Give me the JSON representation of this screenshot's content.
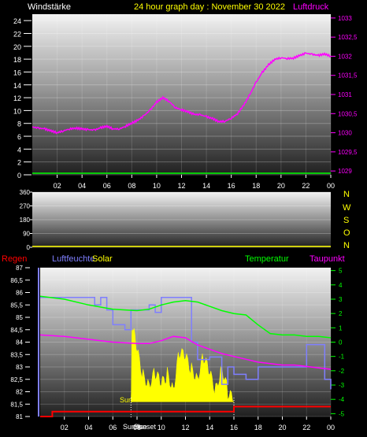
{
  "header": {
    "left_label": "Windstärke",
    "title": "24 hour graph day : November 30 2022",
    "right_label": "Luftdruck"
  },
  "colors": {
    "wind": "#00ff00",
    "pressure": "#ff00ff",
    "direction": "#ffff00",
    "rain": "#ff0000",
    "humidity": "#7f7fff",
    "solar": "#ffff00",
    "temperature": "#00ff00",
    "dewpoint": "#ff00ff",
    "title": "#ffff00",
    "axis_text": "#ffffff"
  },
  "panel2": {
    "compass": [
      "N",
      "W",
      "S",
      "O",
      "N"
    ]
  },
  "panel3": {
    "legend": {
      "rain": "Regen",
      "humidity": "Luftfeuchte",
      "solar": "Solar",
      "temperature": "Temperatur",
      "dewpoint": "Taupunkt"
    },
    "sunrise_label": "Sunrise",
    "sun_label": "Sun",
    "sunset_label": "Sunset"
  },
  "chart_data": [
    {
      "type": "line",
      "title": "24 hour graph day : November 30 2022",
      "xlabel": "",
      "x_ticks": [
        "02",
        "04",
        "06",
        "08",
        "10",
        "12",
        "14",
        "16",
        "18",
        "20",
        "22",
        "00"
      ],
      "y_left_ticks": [
        "0",
        "2",
        "4",
        "6",
        "8",
        "10",
        "12",
        "14",
        "16",
        "18",
        "20",
        "22",
        "24"
      ],
      "y_left_range": [
        0,
        25
      ],
      "y_right_ticks": [
        "1029",
        "1029,5",
        "1030",
        "1030,5",
        "1031",
        "1031,5",
        "1032",
        "1032,5",
        "1033"
      ],
      "y_right_range": [
        1028.9,
        1033.1
      ],
      "series": [
        {
          "name": "Windstärke",
          "axis": "left",
          "color": "#00ff00",
          "x": [
            0,
            24
          ],
          "values": [
            0,
            0
          ]
        },
        {
          "name": "Luftdruck",
          "axis": "right",
          "color": "#ff00ff",
          "x": [
            0,
            0.5,
            1,
            1.5,
            2,
            2.5,
            3,
            3.5,
            4,
            4.5,
            5,
            5.5,
            6,
            6.5,
            7,
            7.5,
            8,
            8.5,
            9,
            9.5,
            10,
            10.5,
            11,
            11.5,
            12,
            12.5,
            13,
            13.5,
            14,
            14.5,
            15,
            15.5,
            16,
            16.5,
            17,
            17.5,
            18,
            18.5,
            19,
            19.5,
            20,
            20.5,
            21,
            21.5,
            22,
            22.5,
            23,
            23.5,
            24
          ],
          "values": [
            1030.15,
            1030.12,
            1030.1,
            1030.05,
            1030.0,
            1030.05,
            1030.1,
            1030.12,
            1030.1,
            1030.08,
            1030.07,
            1030.13,
            1030.17,
            1030.1,
            1030.1,
            1030.17,
            1030.25,
            1030.33,
            1030.45,
            1030.6,
            1030.8,
            1030.92,
            1030.82,
            1030.66,
            1030.6,
            1030.55,
            1030.48,
            1030.47,
            1030.42,
            1030.37,
            1030.29,
            1030.3,
            1030.38,
            1030.5,
            1030.72,
            1031.0,
            1031.32,
            1031.58,
            1031.78,
            1031.92,
            1031.96,
            1031.94,
            1031.95,
            1032.02,
            1032.08,
            1032.05,
            1032.02,
            1032.06,
            1032.0
          ]
        }
      ]
    },
    {
      "type": "line",
      "title": "",
      "x_ticks": [],
      "y_left_ticks": [
        "0",
        "90",
        "180",
        "270",
        "360"
      ],
      "y_left_range": [
        0,
        360
      ],
      "series": [
        {
          "name": "",
          "color": "#ffff00",
          "x": [
            0,
            24
          ],
          "values": [
            0,
            0
          ]
        }
      ]
    },
    {
      "type": "line",
      "title": "",
      "x_ticks": [
        "02",
        "04",
        "06",
        "08",
        "10",
        "12",
        "14",
        "16",
        "18",
        "20",
        "22",
        "00"
      ],
      "y_left_ticks": [
        "81",
        "81,5",
        "82",
        "82,5",
        "83",
        "83,5",
        "84",
        "84,5",
        "85",
        "85,5",
        "86",
        "86,5",
        "87"
      ],
      "y_left_range": [
        81,
        87
      ],
      "y_right_ticks": [
        "-5",
        "-4",
        "-3",
        "-2",
        "-1",
        "0",
        "1",
        "2",
        "3",
        "4",
        "5"
      ],
      "y_right_range": [
        -5.2,
        5.2
      ],
      "series": [
        {
          "name": "Temperatur",
          "axis": "right",
          "color": "#00ff00",
          "x": [
            0,
            2,
            4,
            6,
            8,
            9,
            10,
            11,
            12,
            13,
            14,
            15,
            16,
            17,
            18,
            19,
            20,
            21,
            22,
            23,
            24
          ],
          "values": [
            3.2,
            3.0,
            2.6,
            2.3,
            2.2,
            2.3,
            2.6,
            2.8,
            2.9,
            2.8,
            2.5,
            2.2,
            2.0,
            1.9,
            1.2,
            0.6,
            0.5,
            0.5,
            0.4,
            0.4,
            0.3
          ]
        },
        {
          "name": "Taupunkt",
          "axis": "right",
          "color": "#ff00ff",
          "x": [
            0,
            2,
            4,
            6,
            8,
            9,
            10,
            11,
            12,
            13,
            14,
            15,
            16,
            17,
            18,
            19,
            20,
            21,
            22,
            23,
            24
          ],
          "values": [
            0.5,
            0.4,
            0.2,
            0.0,
            -0.1,
            -0.1,
            0.1,
            0.4,
            0.3,
            -0.2,
            -0.5,
            -0.8,
            -1.0,
            -1.2,
            -1.4,
            -1.5,
            -1.6,
            -1.6,
            -1.7,
            -1.8,
            -1.9
          ]
        },
        {
          "name": "Luftfeuchte",
          "axis": "left",
          "color": "#7f7fff",
          "x": [
            0,
            4,
            4.5,
            5,
            5.5,
            6,
            7,
            7.5,
            8,
            9,
            9.5,
            10,
            11,
            12,
            12.5,
            13,
            14,
            15,
            15.5,
            16,
            17,
            18,
            19,
            20,
            21,
            22,
            23,
            23.5,
            24
          ],
          "values": [
            85.8,
            85.8,
            85.5,
            85.8,
            85.3,
            84.7,
            84.5,
            85.3,
            85.3,
            85.5,
            85.2,
            85.8,
            85.8,
            85.8,
            84.0,
            83.3,
            83.4,
            82.3,
            83.0,
            82.7,
            82.5,
            83.0,
            83.0,
            83.0,
            83.0,
            83.9,
            83.9,
            82.5,
            82.1
          ]
        },
        {
          "name": "Solar",
          "axis": "none",
          "color": "#ffff00",
          "x": [
            7.5,
            7.6,
            8,
            8.5,
            9,
            9.5,
            10,
            10.5,
            11,
            11.5,
            12,
            12.5,
            13,
            13.5,
            14,
            14.5,
            15,
            15.5,
            16
          ],
          "values": [
            0,
            87,
            55,
            28,
            20,
            32,
            18,
            30,
            15,
            55,
            48,
            35,
            27,
            50,
            30,
            12,
            40,
            10,
            0
          ]
        },
        {
          "name": "Regen",
          "axis": "left",
          "color": "#ff0000",
          "x": [
            0,
            0.5,
            1.0,
            7.5,
            16,
            24
          ],
          "values": [
            81.0,
            81.0,
            81.2,
            81.2,
            81.4,
            81.4
          ]
        }
      ],
      "annotations": [
        "Sun",
        "Sunrise",
        "Sunset"
      ]
    }
  ]
}
